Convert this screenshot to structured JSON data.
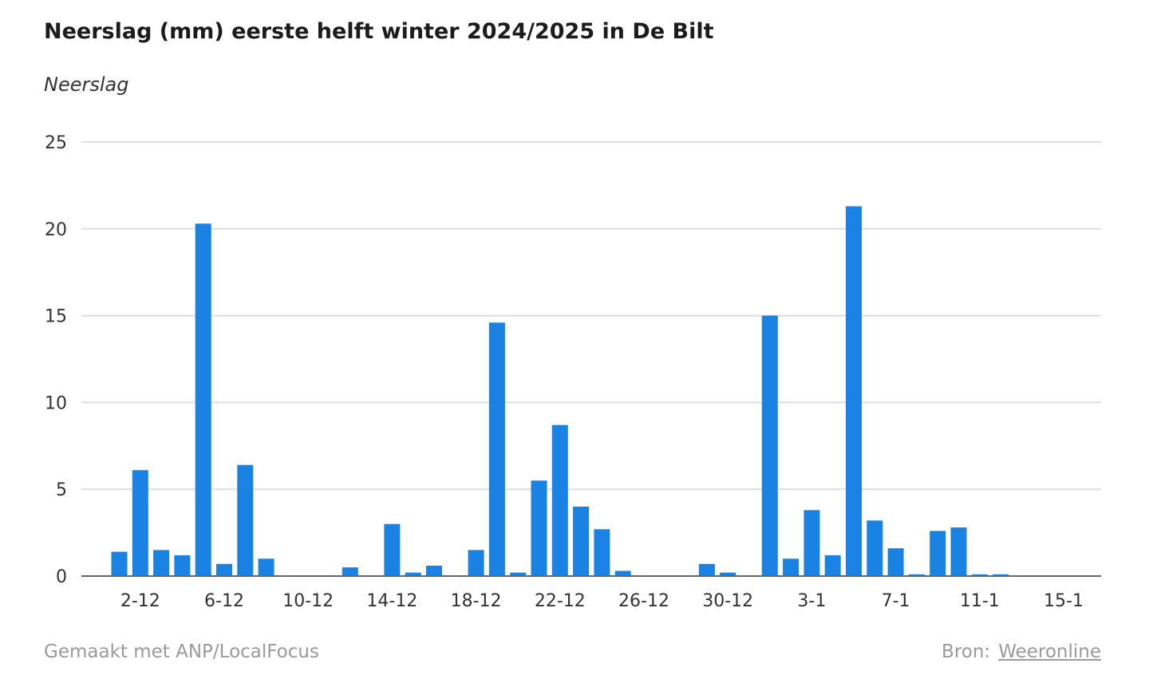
{
  "footer": {
    "credit": "Gemaakt met ANP/LocalFocus",
    "source_label": "Bron:",
    "source_link": "Weeronline"
  },
  "chart_data": {
    "type": "bar",
    "title": "Neerslag (mm) eerste helft winter 2024/2025 in De Bilt",
    "ylabel": "Neerslag",
    "xlabel": "",
    "ylim": [
      0,
      25
    ],
    "yticks": [
      0,
      5,
      10,
      15,
      20,
      25
    ],
    "grid": true,
    "legend": "none",
    "bar_color": "#1a82e2",
    "categories": [
      "1-12",
      "2-12",
      "3-12",
      "4-12",
      "5-12",
      "6-12",
      "7-12",
      "8-12",
      "9-12",
      "10-12",
      "11-12",
      "12-12",
      "13-12",
      "14-12",
      "15-12",
      "16-12",
      "17-12",
      "18-12",
      "19-12",
      "20-12",
      "21-12",
      "22-12",
      "23-12",
      "24-12",
      "25-12",
      "26-12",
      "27-12",
      "28-12",
      "29-12",
      "30-12",
      "31-12",
      "1-1",
      "2-1",
      "3-1",
      "4-1",
      "5-1",
      "6-1",
      "7-1",
      "8-1",
      "9-1",
      "10-1",
      "11-1",
      "12-1",
      "13-1",
      "14-1",
      "15-1",
      "16-1"
    ],
    "tick_labels": [
      "2-12",
      "6-12",
      "10-12",
      "14-12",
      "18-12",
      "22-12",
      "26-12",
      "30-12",
      "3-1",
      "7-1",
      "11-1",
      "15-1"
    ],
    "series": [
      {
        "values": [
          1.4,
          6.1,
          1.5,
          1.2,
          20.3,
          0.7,
          6.4,
          1.0,
          0.0,
          0.0,
          0.0,
          0.5,
          0.0,
          3.0,
          0.2,
          0.6,
          0.0,
          1.5,
          14.6,
          0.2,
          5.5,
          8.7,
          4.0,
          2.7,
          0.3,
          0.0,
          0.0,
          0.0,
          0.7,
          0.2,
          0.0,
          15.0,
          1.0,
          3.8,
          1.2,
          21.3,
          3.2,
          1.6,
          0.1,
          2.6,
          2.8,
          0.1,
          0.1,
          0.0,
          0.0,
          0.0,
          0.0
        ]
      }
    ]
  }
}
